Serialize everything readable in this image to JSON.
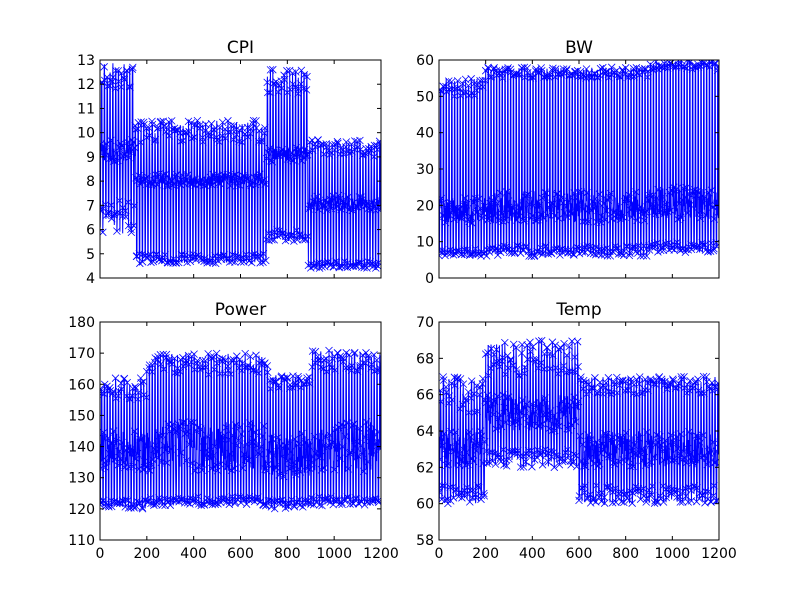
{
  "series_color": "#0000ff",
  "marker": "x",
  "chart_data": [
    {
      "type": "line",
      "title": "CPI",
      "xlim": [
        0,
        1200
      ],
      "ylim": [
        4,
        13
      ],
      "x_ticks": [],
      "y_ticks": [
        4,
        5,
        6,
        7,
        8,
        9,
        10,
        11,
        12,
        13
      ],
      "segments": [
        {
          "x_start": 0,
          "x_end": 150,
          "low": [
            5.8,
            7.2
          ],
          "high": [
            11.8,
            12.9
          ],
          "mid_band": [
            8.8,
            9.7
          ]
        },
        {
          "x_start": 150,
          "x_end": 710,
          "low": [
            4.6,
            5.0
          ],
          "high": [
            9.6,
            10.5
          ],
          "mid_band": [
            7.8,
            8.3
          ]
        },
        {
          "x_start": 710,
          "x_end": 890,
          "low": [
            5.5,
            6.0
          ],
          "high": [
            11.6,
            12.6
          ],
          "mid_band": [
            8.8,
            9.4
          ]
        },
        {
          "x_start": 890,
          "x_end": 1200,
          "low": [
            4.4,
            4.7
          ],
          "high": [
            9.0,
            9.7
          ],
          "mid_band": [
            6.8,
            7.4
          ]
        }
      ]
    },
    {
      "type": "line",
      "title": "BW",
      "xlim": [
        0,
        1200
      ],
      "ylim": [
        0,
        60
      ],
      "x_ticks": [],
      "y_ticks": [
        0,
        10,
        20,
        30,
        40,
        50,
        60
      ],
      "segments": [
        {
          "x_start": 0,
          "x_end": 200,
          "low": [
            6,
            8
          ],
          "high": [
            50,
            55
          ],
          "mid_band": [
            15,
            22
          ]
        },
        {
          "x_start": 200,
          "x_end": 900,
          "low": [
            6,
            9
          ],
          "high": [
            55,
            58
          ],
          "mid_band": [
            15,
            24
          ]
        },
        {
          "x_start": 900,
          "x_end": 1200,
          "low": [
            7,
            10
          ],
          "high": [
            57,
            60
          ],
          "mid_band": [
            16,
            25
          ]
        }
      ]
    },
    {
      "type": "line",
      "title": "Power",
      "xlim": [
        0,
        1200
      ],
      "ylim": [
        110,
        180
      ],
      "x_ticks": [
        0,
        200,
        400,
        600,
        800,
        1000,
        1200
      ],
      "y_ticks": [
        110,
        120,
        130,
        140,
        150,
        160,
        170,
        180
      ],
      "segments": [
        {
          "x_start": 0,
          "x_end": 200,
          "low": [
            120,
            123
          ],
          "high": [
            155,
            162
          ],
          "mid_band": [
            132,
            145
          ]
        },
        {
          "x_start": 200,
          "x_end": 720,
          "low": [
            121,
            124
          ],
          "high": [
            163,
            170
          ],
          "mid_band": [
            132,
            148
          ]
        },
        {
          "x_start": 720,
          "x_end": 900,
          "low": [
            120,
            123
          ],
          "high": [
            158,
            163
          ],
          "mid_band": [
            130,
            145
          ]
        },
        {
          "x_start": 900,
          "x_end": 1200,
          "low": [
            121,
            124
          ],
          "high": [
            164,
            171
          ],
          "mid_band": [
            132,
            148
          ]
        }
      ]
    },
    {
      "type": "line",
      "title": "Temp",
      "xlim": [
        0,
        1200
      ],
      "ylim": [
        58,
        70
      ],
      "x_ticks": [
        0,
        200,
        400,
        600,
        800,
        1000,
        1200
      ],
      "y_ticks": [
        58,
        60,
        62,
        64,
        66,
        68,
        70
      ],
      "segments": [
        {
          "x_start": 0,
          "x_end": 200,
          "low": [
            60,
            61
          ],
          "high": [
            65,
            67
          ],
          "mid_band": [
            62,
            64
          ]
        },
        {
          "x_start": 200,
          "x_end": 600,
          "low": [
            62,
            63
          ],
          "high": [
            67,
            69
          ],
          "mid_band": [
            64,
            66
          ]
        },
        {
          "x_start": 600,
          "x_end": 1200,
          "low": [
            60,
            61
          ],
          "high": [
            66,
            67
          ],
          "mid_band": [
            62,
            64
          ]
        }
      ]
    }
  ]
}
